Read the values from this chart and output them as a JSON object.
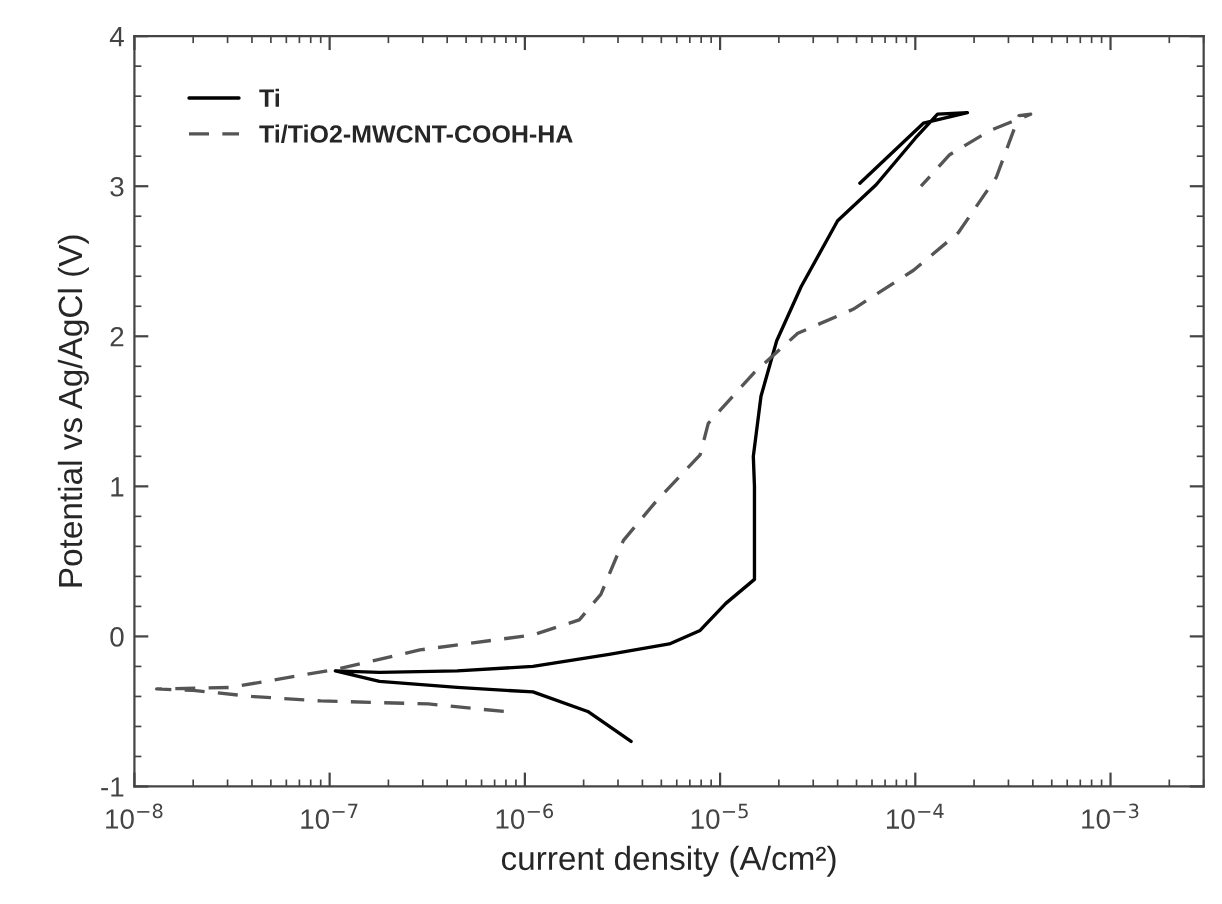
{
  "chart_data": {
    "type": "line",
    "xlabel": "current density (A/cm²)",
    "ylabel": "Potential vs Ag/AgCl (V)",
    "log": "x",
    "xlim": [
      1e-08,
      0.003
    ],
    "ylim": [
      -1,
      4
    ],
    "xticks": [
      {
        "value": 1e-08,
        "label": "10$^{−8}$"
      },
      {
        "value": 1e-07,
        "label": "10$^{−7}$"
      },
      {
        "value": 1e-06,
        "label": "10$^{−6}$"
      },
      {
        "value": 1e-05,
        "label": "10$^{−5}$"
      },
      {
        "value": 0.0001,
        "label": "10$^{−4}$"
      },
      {
        "value": 0.001,
        "label": "10$^{−3}$"
      }
    ],
    "yticks": [
      -1,
      0,
      1,
      2,
      3,
      4
    ],
    "grid": false,
    "legend": "top left",
    "series": [
      {
        "name": "Ti",
        "color": "#000000",
        "line_style": "solid",
        "x": [
          3.5e-06,
          2.1e-06,
          1.1e-06,
          4.5e-07,
          1.8e-07,
          1.07e-07,
          1.8e-07,
          4.5e-07,
          1.1e-06,
          2.7e-06,
          5.5e-06,
          7.9e-06,
          1.07e-05,
          1.5e-05,
          1.5e-05,
          1.48e-05,
          1.62e-05,
          1.95e-05,
          2.6e-05,
          4e-05,
          6.3e-05,
          0.0001,
          0.00013,
          0.000185,
          0.00011,
          5.2e-05
        ],
        "values": [
          -0.7,
          -0.5,
          -0.37,
          -0.34,
          -0.3,
          -0.23,
          -0.24,
          -0.23,
          -0.2,
          -0.12,
          -0.05,
          0.04,
          0.22,
          0.38,
          1.0,
          1.2,
          1.6,
          1.97,
          2.33,
          2.77,
          3.01,
          3.32,
          3.48,
          3.49,
          3.42,
          3.02
        ]
      },
      {
        "name": "Ti/TiO2-MWCNT-COOH-HA",
        "color": "#555555",
        "line_style": "dashed",
        "x": [
          7.8e-07,
          3.2e-07,
          9e-08,
          4e-08,
          2e-08,
          1.3e-08,
          3.1e-08,
          1.07e-07,
          2.9e-07,
          1.1e-06,
          1.9e-06,
          2.45e-06,
          3.2e-06,
          4.7e-06,
          7.9e-06,
          8.7e-06,
          1.5e-05,
          2.5e-05,
          4.8e-05,
          9.8e-05,
          0.000166,
          0.00026,
          0.00034,
          0.00039,
          0.00024,
          0.00015,
          0.000107
        ],
        "values": [
          -0.5,
          -0.45,
          -0.43,
          -0.4,
          -0.36,
          -0.35,
          -0.34,
          -0.22,
          -0.09,
          0.01,
          0.11,
          0.28,
          0.64,
          0.9,
          1.21,
          1.42,
          1.76,
          2.02,
          2.18,
          2.44,
          2.69,
          3.06,
          3.47,
          3.48,
          3.37,
          3.21,
          3.0
        ]
      }
    ]
  }
}
